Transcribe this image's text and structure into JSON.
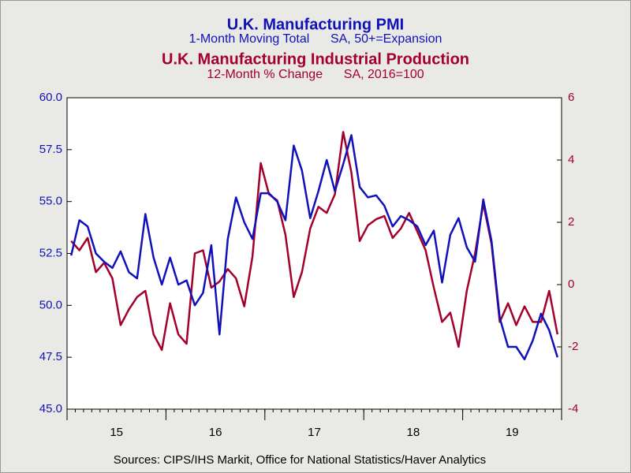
{
  "chart_data": {
    "type": "line",
    "series": [
      {
        "name": "U.K. Manufacturing PMI",
        "subtitle": "1-Month Moving Total      SA, 50+=Expansion",
        "color": "#1111b8",
        "axis": "y",
        "values": [
          52.4,
          54.1,
          53.8,
          52.5,
          52.1,
          51.8,
          52.6,
          51.6,
          51.3,
          54.4,
          52.3,
          51.0,
          52.3,
          51.0,
          51.2,
          50.0,
          50.6,
          52.9,
          48.6,
          53.2,
          55.2,
          54.0,
          53.2,
          55.4,
          55.4,
          55.0,
          54.1,
          57.7,
          56.5,
          54.2,
          55.5,
          57.0,
          55.5,
          56.8,
          58.2,
          55.7,
          55.2,
          55.3,
          54.8,
          53.8,
          54.3,
          54.1,
          53.8,
          52.9,
          53.6,
          51.1,
          53.4,
          54.2,
          52.8,
          52.1,
          55.1,
          53.1,
          49.4,
          48.0,
          48.0,
          47.4,
          48.3,
          49.6,
          48.8,
          47.5
        ]
      },
      {
        "name": "U.K. Manufacturing Industrial Production",
        "subtitle": "12-Month % Change      SA, 2016=100",
        "color": "#a3002c",
        "axis": "y2",
        "values": [
          1.4,
          1.1,
          1.5,
          0.4,
          0.7,
          0.2,
          -1.3,
          -0.8,
          -0.4,
          -0.2,
          -1.6,
          -2.1,
          -0.6,
          -1.6,
          -1.9,
          1.0,
          1.1,
          -0.1,
          0.1,
          0.5,
          0.2,
          -0.7,
          0.9,
          3.9,
          2.9,
          2.7,
          1.6,
          -0.4,
          0.4,
          1.8,
          2.5,
          2.3,
          2.9,
          4.9,
          3.6,
          1.4,
          1.9,
          2.1,
          2.2,
          1.5,
          1.8,
          2.3,
          1.7,
          1.1,
          -0.1,
          -1.2,
          -0.9,
          -2.0,
          -0.2,
          1.0,
          2.6,
          1.3,
          -1.2,
          -0.6,
          -1.3,
          -0.7,
          -1.2,
          -1.2,
          -0.2,
          -1.6
        ]
      }
    ],
    "categories": [
      null,
      null,
      null,
      null,
      null,
      null,
      "15",
      null,
      null,
      null,
      null,
      null,
      null,
      null,
      null,
      null,
      null,
      null,
      "16",
      null,
      null,
      null,
      null,
      null,
      null,
      null,
      null,
      null,
      null,
      null,
      "17",
      null,
      null,
      null,
      null,
      null,
      null,
      null,
      null,
      null,
      null,
      null,
      "18",
      null,
      null,
      null,
      null,
      null,
      null,
      null,
      null,
      null,
      null,
      null,
      "19",
      null,
      null,
      null,
      null,
      null
    ],
    "ylim": [
      45,
      60
    ],
    "yticks": [
      {
        "value": 45,
        "label": "45.0"
      },
      {
        "value": 47.5,
        "label": "47.5"
      },
      {
        "value": 50,
        "label": "50.0"
      },
      {
        "value": 52.5,
        "label": "52.5"
      },
      {
        "value": 55,
        "label": "55.0"
      },
      {
        "value": 57.5,
        "label": "57.5"
      },
      {
        "value": 60,
        "label": "60.0"
      }
    ],
    "y2lim": [
      -4,
      6
    ],
    "y2ticks": [
      -4,
      -2,
      0,
      2,
      4,
      6
    ],
    "source": "Sources:  CIPS/IHS Markit, Office for National Statistics/Haver Analytics"
  }
}
